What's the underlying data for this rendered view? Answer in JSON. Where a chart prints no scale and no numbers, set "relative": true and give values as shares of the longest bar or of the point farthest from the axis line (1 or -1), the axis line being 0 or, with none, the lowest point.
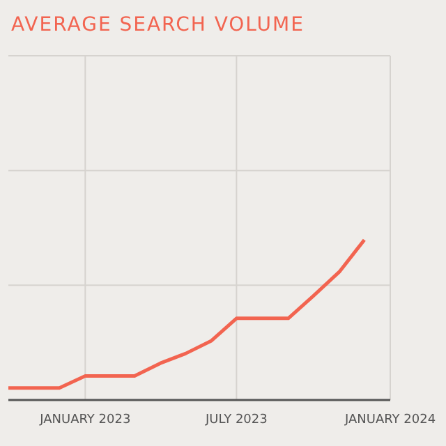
{
  "chart_data": {
    "type": "line",
    "title": "AVERAGE SEARCH VOLUME",
    "relative": true,
    "grid": true,
    "x": [
      "2022-10",
      "2022-11",
      "2022-12",
      "2023-01",
      "2023-02",
      "2023-03",
      "2023-04",
      "2023-05",
      "2023-06",
      "2023-07",
      "2023-08",
      "2023-09",
      "2023-10",
      "2023-11",
      "2023-12"
    ],
    "series": [
      {
        "color": "#f26450",
        "values": [
          0.075,
          0.075,
          0.075,
          0.15,
          0.15,
          0.15,
          0.23,
          0.29,
          0.37,
          0.51,
          0.51,
          0.51,
          0.65,
          0.8,
          1
        ]
      }
    ],
    "xlim": [
      "2022-10",
      "2024-01"
    ],
    "xticks": [
      {
        "value": "2023-01",
        "label": "JANUARY 2023"
      },
      {
        "value": "2023-07",
        "label": "JULY 2023"
      },
      {
        "value": "2024-01",
        "label": "JANUARY 2024"
      }
    ],
    "marker": "none",
    "line_style": "solid"
  }
}
